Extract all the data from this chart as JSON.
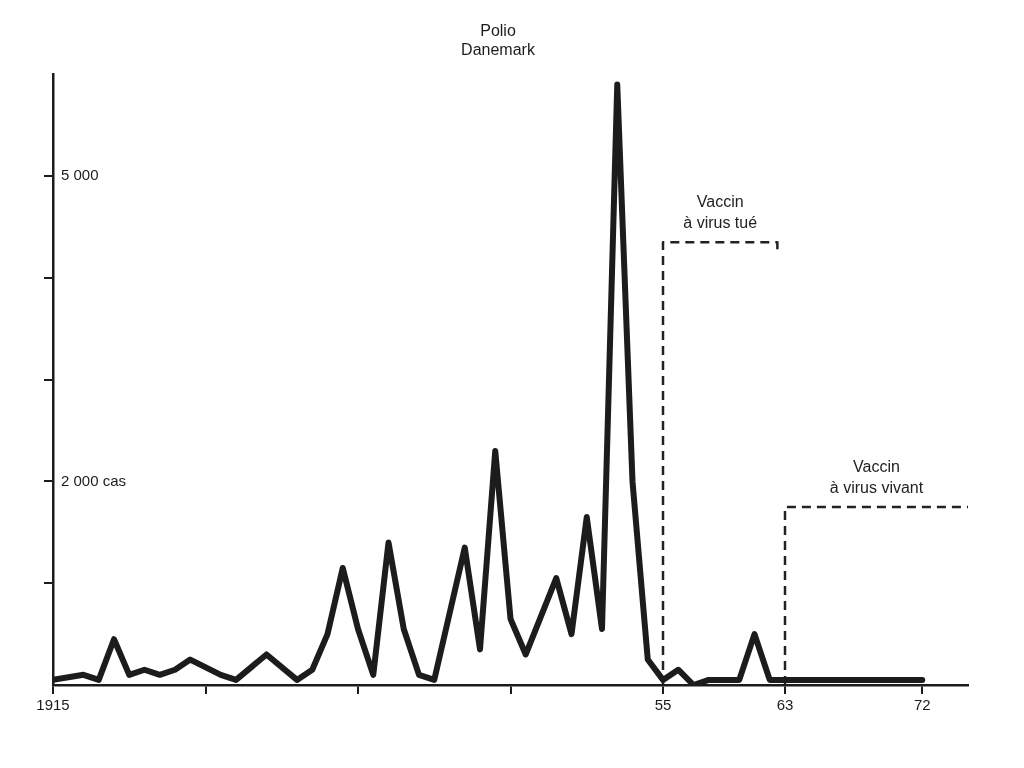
{
  "chart_data": {
    "type": "line",
    "title": "Polio\nDanemark",
    "x": [
      1915,
      1917,
      1918,
      1919,
      1920,
      1921,
      1922,
      1923,
      1924,
      1926,
      1927,
      1929,
      1931,
      1932,
      1933,
      1934,
      1935,
      1936,
      1937,
      1938,
      1939,
      1940,
      1942,
      1943,
      1944,
      1945,
      1946,
      1948,
      1949,
      1950,
      1951,
      1952,
      1953,
      1954,
      1955,
      1956,
      1957,
      1958,
      1960,
      1961,
      1962,
      1972
    ],
    "series": [
      {
        "color": "#1c1c1c",
        "values": [
          50,
          100,
          50,
          450,
          100,
          150,
          100,
          150,
          250,
          100,
          50,
          300,
          50,
          150,
          500,
          1150,
          550,
          100,
          1400,
          550,
          100,
          50,
          1350,
          350,
          2300,
          650,
          300,
          1050,
          500,
          1650,
          550,
          5900,
          2000,
          250,
          50,
          150,
          0,
          50,
          50,
          500,
          50,
          50
        ]
      },
      {
        "name": "Vaccin\nà virus tué",
        "type": "line",
        "line_style": "dashed",
        "color": "#222222",
        "x": [
          1955,
          1955,
          1962.5,
          1962.5
        ],
        "values": [
          0,
          4350,
          4350,
          4250
        ]
      },
      {
        "name": "Vaccin\nà virus vivant",
        "type": "line",
        "line_style": "dashed",
        "color": "#222222",
        "x": [
          1963,
          1963,
          1975
        ],
        "values": [
          0,
          1750,
          1750
        ]
      }
    ],
    "xlim": [
      1915,
      1975
    ],
    "ylim": [
      0,
      6000
    ],
    "xticks": [
      {
        "value": 1915,
        "label": "1915"
      },
      {
        "value": 1925,
        "label": null
      },
      {
        "value": 1935,
        "label": null
      },
      {
        "value": 1945,
        "label": null
      },
      {
        "value": 1955,
        "label": "55"
      },
      {
        "value": 1963,
        "label": "63"
      },
      {
        "value": 1972,
        "label": "72"
      }
    ],
    "yticks": [
      {
        "value": 1000,
        "label": null
      },
      {
        "value": 2000,
        "label": "2 000 cas"
      },
      {
        "value": 3000,
        "label": null
      },
      {
        "value": 4000,
        "label": null
      },
      {
        "value": 5000,
        "label": "5 000"
      }
    ],
    "marker": "none"
  }
}
